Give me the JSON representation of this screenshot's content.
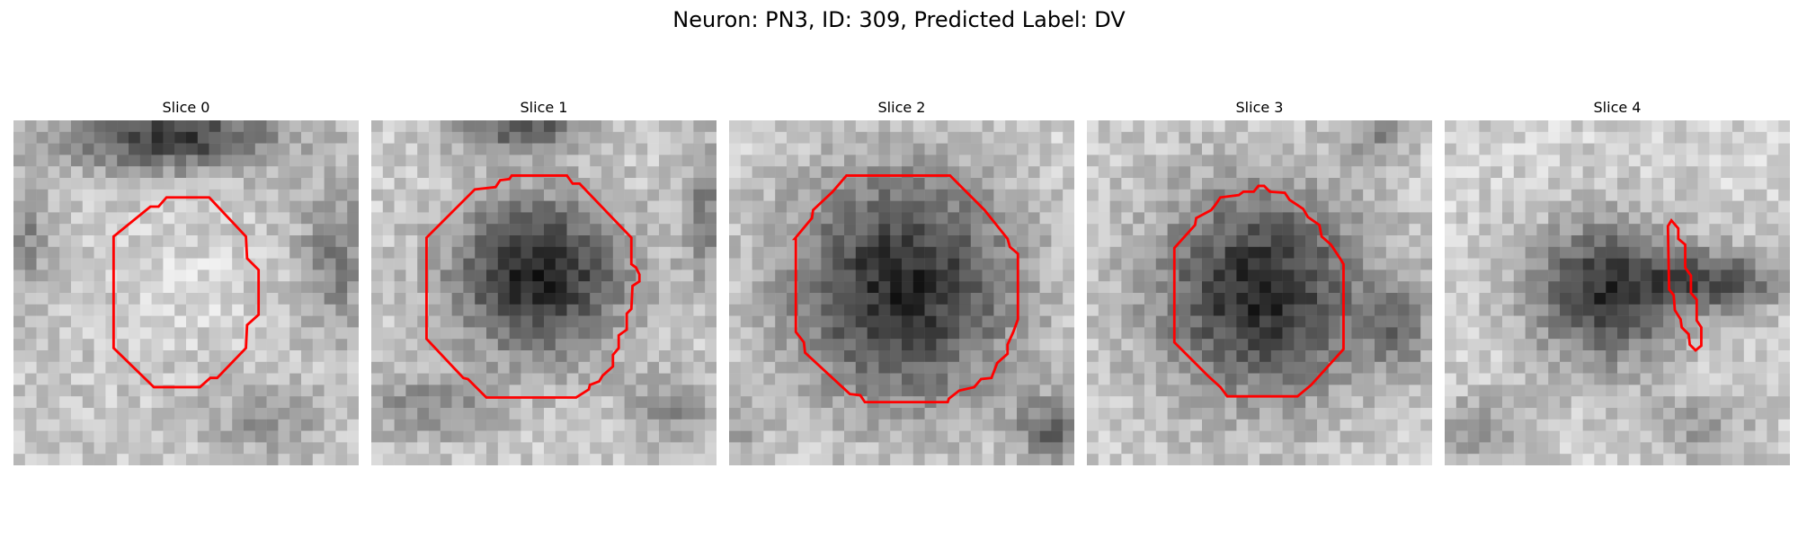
{
  "figure": {
    "title": "Neuron: PN3, ID: 309, Predicted Label: DV"
  },
  "panels": [
    {
      "title": "Slice 0",
      "contour_color": "#ff0000"
    },
    {
      "title": "Slice 1",
      "contour_color": "#ff0000"
    },
    {
      "title": "Slice 2",
      "contour_color": "#ff0000"
    },
    {
      "title": "Slice 3",
      "contour_color": "#ff0000"
    },
    {
      "title": "Slice 4",
      "contour_color": "#ff0000"
    }
  ]
}
